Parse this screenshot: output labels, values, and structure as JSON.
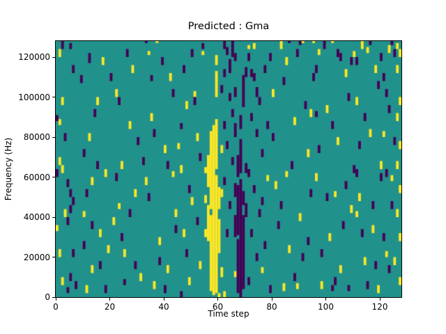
{
  "chart_data": {
    "type": "heatmap",
    "title": "Predicted : Gma",
    "xlabel": "Time step",
    "ylabel": "Frequency (Hz)",
    "grid": {
      "cols": 128,
      "rows": 128
    },
    "xlim": [
      0,
      128
    ],
    "ylim": [
      0,
      128000
    ],
    "x_ticks": [
      0,
      20,
      40,
      60,
      80,
      100,
      120
    ],
    "y_ticks": [
      0,
      20000,
      40000,
      60000,
      80000,
      100000,
      120000
    ],
    "legend": "none",
    "colors": {
      "background": "#21918c",
      "yellow": "#fde725",
      "purple": "#440154",
      "axis": "#000000",
      "figure_bg": "#ffffff"
    },
    "cells": {
      "yellow": [
        [
          55,
          30,
          33
        ],
        [
          55,
          47,
          50
        ],
        [
          55,
          62,
          64
        ],
        [
          56,
          28,
          45
        ],
        [
          56,
          55,
          70
        ],
        [
          57,
          3,
          40
        ],
        [
          57,
          44,
          82
        ],
        [
          58,
          1,
          85
        ],
        [
          59,
          2,
          60
        ],
        [
          59,
          64,
          88
        ],
        [
          59,
          100,
          112
        ],
        [
          59,
          116,
          120
        ],
        [
          60,
          0,
          1
        ],
        [
          60,
          22,
          38
        ],
        [
          60,
          44,
          54
        ],
        [
          61,
          10,
          14
        ],
        [
          61,
          50,
          53
        ],
        [
          61,
          72,
          75
        ],
        [
          62,
          0,
          2
        ],
        [
          0,
          33,
          35
        ],
        [
          1,
          20,
          23
        ],
        [
          1,
          66,
          69
        ],
        [
          1,
          86,
          88
        ],
        [
          1,
          120,
          123
        ],
        [
          2,
          6,
          9
        ],
        [
          2,
          62,
          65
        ],
        [
          2,
          96,
          99
        ],
        [
          3,
          40,
          43
        ],
        [
          10,
          40,
          42
        ],
        [
          11,
          2,
          5
        ],
        [
          12,
          78,
          81
        ],
        [
          13,
          12,
          15
        ],
        [
          13,
          56,
          59
        ],
        [
          15,
          96,
          99
        ],
        [
          16,
          30,
          33
        ],
        [
          17,
          116,
          119
        ],
        [
          18,
          60,
          63
        ],
        [
          19,
          22,
          25
        ],
        [
          21,
          36,
          39
        ],
        [
          22,
          100,
          103
        ],
        [
          23,
          44,
          46
        ],
        [
          24,
          64,
          67
        ],
        [
          25,
          20,
          23
        ],
        [
          27,
          84,
          87
        ],
        [
          28,
          112,
          115
        ],
        [
          29,
          50,
          53
        ],
        [
          31,
          8,
          11
        ],
        [
          33,
          56,
          59
        ],
        [
          34,
          121,
          122
        ],
        [
          35,
          88,
          91
        ],
        [
          36,
          4,
          7
        ],
        [
          37,
          127,
          127
        ],
        [
          38,
          26,
          29
        ],
        [
          40,
          72,
          75
        ],
        [
          41,
          12,
          15
        ],
        [
          42,
          108,
          111
        ],
        [
          43,
          60,
          62
        ],
        [
          44,
          40,
          43
        ],
        [
          45,
          74,
          76
        ],
        [
          46,
          62,
          65
        ],
        [
          47,
          30,
          33
        ],
        [
          48,
          94,
          97
        ],
        [
          49,
          6,
          9
        ],
        [
          50,
          46,
          49
        ],
        [
          51,
          100,
          102
        ],
        [
          52,
          78,
          81
        ],
        [
          53,
          14,
          17
        ],
        [
          54,
          121,
          122
        ],
        [
          66,
          10,
          12
        ],
        [
          71,
          124,
          125
        ],
        [
          73,
          124,
          126
        ],
        [
          76,
          12,
          14
        ],
        [
          78,
          58,
          60
        ],
        [
          80,
          100,
          103
        ],
        [
          81,
          54,
          57
        ],
        [
          83,
          124,
          127
        ],
        [
          84,
          3,
          6
        ],
        [
          85,
          60,
          62
        ],
        [
          85,
          116,
          119
        ],
        [
          86,
          22,
          25
        ],
        [
          88,
          86,
          89
        ],
        [
          89,
          4,
          6
        ],
        [
          90,
          38,
          41
        ],
        [
          91,
          127,
          127
        ],
        [
          93,
          70,
          73
        ],
        [
          94,
          90,
          93
        ],
        [
          95,
          127,
          127
        ],
        [
          96,
          58,
          61
        ],
        [
          97,
          121,
          123
        ],
        [
          98,
          4,
          7
        ],
        [
          100,
          92,
          95
        ],
        [
          101,
          28,
          31
        ],
        [
          102,
          127,
          127
        ],
        [
          103,
          50,
          52
        ],
        [
          104,
          76,
          79
        ],
        [
          105,
          12,
          15
        ],
        [
          107,
          110,
          113
        ],
        [
          109,
          42,
          45
        ],
        [
          110,
          120,
          122
        ],
        [
          111,
          40,
          42
        ],
        [
          111,
          96,
          99
        ],
        [
          112,
          48,
          51
        ],
        [
          113,
          124,
          127
        ],
        [
          114,
          16,
          19
        ],
        [
          115,
          122,
          124
        ],
        [
          116,
          80,
          83
        ],
        [
          117,
          32,
          35
        ],
        [
          118,
          112,
          115
        ],
        [
          119,
          2,
          5
        ],
        [
          120,
          64,
          67
        ],
        [
          121,
          80,
          82
        ],
        [
          122,
          20,
          22
        ],
        [
          123,
          122,
          125
        ],
        [
          124,
          58,
          60
        ],
        [
          125,
          16,
          19
        ],
        [
          126,
          40,
          43
        ],
        [
          126,
          64,
          67
        ],
        [
          126,
          88,
          91
        ],
        [
          126,
          112,
          115
        ],
        [
          126,
          124,
          126
        ],
        [
          127,
          6,
          9
        ],
        [
          127,
          28,
          31
        ],
        [
          127,
          52,
          55
        ],
        [
          127,
          74,
          77
        ],
        [
          127,
          96,
          99
        ],
        [
          127,
          120,
          123
        ]
      ],
      "purple": [
        [
          66,
          30,
          40
        ],
        [
          66,
          50,
          56
        ],
        [
          66,
          80,
          86
        ],
        [
          66,
          100,
          104
        ],
        [
          66,
          118,
          121
        ],
        [
          67,
          2,
          28
        ],
        [
          67,
          31,
          55
        ],
        [
          67,
          60,
          70
        ],
        [
          68,
          0,
          58
        ],
        [
          68,
          62,
          78
        ],
        [
          68,
          84,
          90
        ],
        [
          69,
          4,
          40
        ],
        [
          69,
          46,
          52
        ],
        [
          69,
          95,
          110
        ],
        [
          70,
          40,
          46
        ],
        [
          70,
          62,
          66
        ],
        [
          70,
          110,
          114
        ],
        [
          61,
          102,
          105
        ],
        [
          62,
          56,
          59
        ],
        [
          62,
          84,
          87
        ],
        [
          62,
          110,
          113
        ],
        [
          62,
          124,
          127
        ],
        [
          63,
          30,
          33
        ],
        [
          63,
          74,
          77
        ],
        [
          63,
          121,
          124
        ],
        [
          64,
          44,
          47
        ],
        [
          64,
          98,
          101
        ],
        [
          64,
          112,
          118
        ],
        [
          65,
          66,
          69
        ],
        [
          65,
          90,
          93
        ],
        [
          65,
          120,
          127
        ],
        [
          71,
          6,
          9
        ],
        [
          71,
          60,
          63
        ],
        [
          71,
          118,
          121
        ],
        [
          72,
          30,
          33
        ],
        [
          72,
          88,
          91
        ],
        [
          72,
          110,
          113
        ],
        [
          73,
          52,
          55
        ],
        [
          73,
          108,
          111
        ],
        [
          74,
          18,
          21
        ],
        [
          74,
          80,
          83
        ],
        [
          74,
          100,
          104
        ],
        [
          75,
          40,
          43
        ],
        [
          75,
          96,
          99
        ],
        [
          76,
          46,
          49
        ],
        [
          76,
          70,
          73
        ],
        [
          77,
          24,
          27
        ],
        [
          77,
          112,
          115
        ],
        [
          78,
          84,
          87
        ],
        [
          0,
          60,
          63
        ],
        [
          0,
          88,
          90
        ],
        [
          2,
          124,
          127
        ],
        [
          3,
          78,
          81
        ],
        [
          4,
          2,
          4
        ],
        [
          4,
          36,
          39
        ],
        [
          4,
          55,
          58
        ],
        [
          5,
          8,
          11
        ],
        [
          5,
          42,
          45
        ],
        [
          5,
          50,
          53
        ],
        [
          5,
          124,
          126
        ],
        [
          6,
          20,
          23
        ],
        [
          6,
          46,
          49
        ],
        [
          6,
          112,
          115
        ],
        [
          7,
          4,
          7
        ],
        [
          9,
          107,
          110
        ],
        [
          10,
          24,
          27
        ],
        [
          10,
          70,
          73
        ],
        [
          11,
          50,
          53
        ],
        [
          12,
          117,
          121
        ],
        [
          13,
          34,
          37
        ],
        [
          14,
          90,
          93
        ],
        [
          15,
          64,
          67
        ],
        [
          16,
          14,
          17
        ],
        [
          18,
          2,
          5
        ],
        [
          20,
          108,
          111
        ],
        [
          22,
          58,
          61
        ],
        [
          23,
          96,
          99
        ],
        [
          24,
          28,
          31
        ],
        [
          25,
          6,
          8
        ],
        [
          26,
          120,
          123
        ],
        [
          27,
          40,
          43
        ],
        [
          29,
          14,
          17
        ],
        [
          30,
          76,
          79
        ],
        [
          32,
          66,
          69
        ],
        [
          33,
          127,
          127
        ],
        [
          34,
          48,
          51
        ],
        [
          35,
          108,
          110
        ],
        [
          36,
          80,
          83
        ],
        [
          38,
          16,
          19
        ],
        [
          39,
          116,
          119
        ],
        [
          40,
          2,
          5
        ],
        [
          41,
          64,
          67
        ],
        [
          43,
          100,
          103
        ],
        [
          44,
          32,
          35
        ],
        [
          46,
          0,
          2
        ],
        [
          46,
          84,
          86
        ],
        [
          47,
          112,
          115
        ],
        [
          48,
          20,
          23
        ],
        [
          49,
          52,
          55
        ],
        [
          50,
          120,
          123
        ],
        [
          51,
          96,
          99
        ],
        [
          52,
          36,
          39
        ],
        [
          53,
          68,
          71
        ],
        [
          54,
          124,
          126
        ],
        [
          79,
          2,
          5
        ],
        [
          79,
          118,
          121
        ],
        [
          80,
          78,
          81
        ],
        [
          82,
          34,
          37
        ],
        [
          83,
          44,
          47
        ],
        [
          84,
          106,
          109
        ],
        [
          86,
          127,
          127
        ],
        [
          87,
          64,
          67
        ],
        [
          88,
          8,
          11
        ],
        [
          89,
          120,
          123
        ],
        [
          90,
          126,
          127
        ],
        [
          91,
          18,
          21
        ],
        [
          92,
          94,
          97
        ],
        [
          93,
          26,
          29
        ],
        [
          94,
          50,
          53
        ],
        [
          95,
          108,
          111
        ],
        [
          96,
          90,
          92
        ],
        [
          96,
          112,
          115
        ],
        [
          97,
          72,
          75
        ],
        [
          98,
          20,
          23
        ],
        [
          99,
          124,
          127
        ],
        [
          100,
          48,
          51
        ],
        [
          102,
          3,
          5
        ],
        [
          102,
          84,
          87
        ],
        [
          103,
          6,
          9
        ],
        [
          104,
          120,
          123
        ],
        [
          105,
          118,
          121
        ],
        [
          106,
          34,
          37
        ],
        [
          107,
          54,
          57
        ],
        [
          108,
          3,
          5
        ],
        [
          108,
          98,
          101
        ],
        [
          109,
          116,
          119
        ],
        [
          110,
          62,
          65
        ],
        [
          111,
          60,
          63
        ],
        [
          111,
          116,
          119
        ],
        [
          112,
          74,
          77
        ],
        [
          113,
          30,
          33
        ],
        [
          114,
          88,
          91
        ],
        [
          115,
          4,
          7
        ],
        [
          116,
          126,
          127
        ],
        [
          117,
          44,
          47
        ],
        [
          118,
          14,
          17
        ],
        [
          119,
          104,
          107
        ],
        [
          120,
          58,
          61
        ],
        [
          120,
          118,
          121
        ],
        [
          121,
          28,
          31
        ],
        [
          121,
          108,
          111
        ],
        [
          122,
          60,
          63
        ],
        [
          122,
          100,
          103
        ],
        [
          123,
          12,
          15
        ],
        [
          123,
          92,
          95
        ],
        [
          124,
          44,
          47
        ],
        [
          124,
          126,
          127
        ],
        [
          125,
          76,
          79
        ],
        [
          125,
          120,
          123
        ]
      ]
    }
  }
}
